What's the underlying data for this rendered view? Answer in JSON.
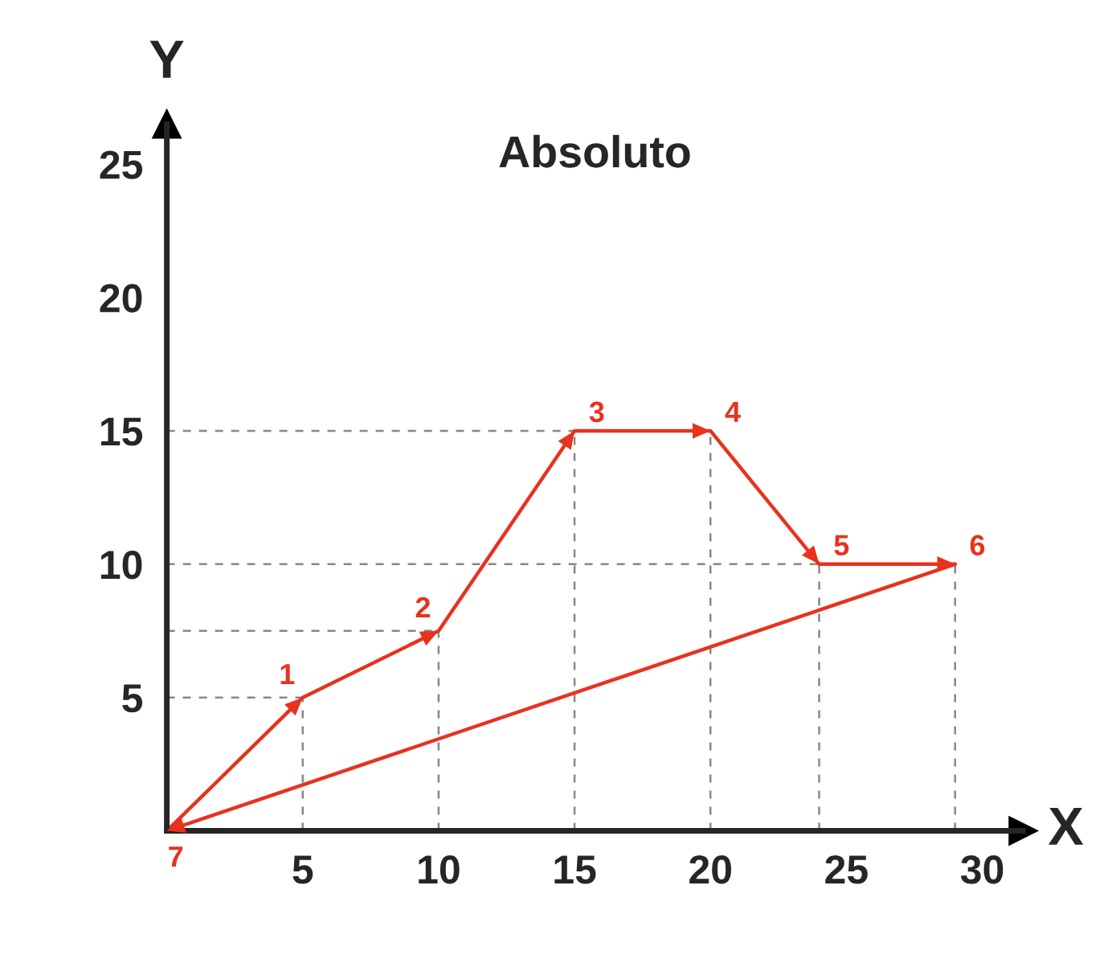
{
  "chart_data": {
    "type": "line",
    "title": "Absoluto",
    "xlabel": "X",
    "ylabel": "Y",
    "x": [
      0,
      5,
      10,
      15,
      20,
      24,
      29
    ],
    "series": [
      {
        "color": "#e8321e",
        "values": [
          0,
          5,
          7.5,
          15,
          15,
          10,
          10
        ]
      },
      {
        "color": "#e8321e",
        "x": [
          29,
          0
        ],
        "values": [
          10,
          0
        ]
      }
    ],
    "annotations": [
      {
        "text": "1",
        "x": 5,
        "y": 5
      },
      {
        "text": "2",
        "x": 10,
        "y": 7.5
      },
      {
        "text": "3",
        "x": 15,
        "y": 15
      },
      {
        "text": "4",
        "x": 20,
        "y": 15
      },
      {
        "text": "5",
        "x": 24,
        "y": 10
      },
      {
        "text": "6",
        "x": 29,
        "y": 10
      },
      {
        "text": "7",
        "x": 0,
        "y": 0
      }
    ],
    "ref_lines": [
      {
        "axis": "y",
        "value": 5,
        "color": "#888888",
        "line_style": "dashed"
      },
      {
        "axis": "y",
        "value": 7.5,
        "color": "#888888",
        "line_style": "dashed"
      },
      {
        "axis": "y",
        "value": 10,
        "color": "#888888",
        "line_style": "dashed"
      },
      {
        "axis": "y",
        "value": 15,
        "color": "#888888",
        "line_style": "dashed"
      },
      {
        "axis": "x",
        "value": 5,
        "color": "#888888",
        "line_style": "dashed"
      },
      {
        "axis": "x",
        "value": 10,
        "color": "#888888",
        "line_style": "dashed"
      },
      {
        "axis": "x",
        "value": 15,
        "color": "#888888",
        "line_style": "dashed"
      },
      {
        "axis": "x",
        "value": 20,
        "color": "#888888",
        "line_style": "dashed"
      },
      {
        "axis": "x",
        "value": 24,
        "color": "#888888",
        "line_style": "dashed"
      },
      {
        "axis": "x",
        "value": 29,
        "color": "#888888",
        "line_style": "dashed"
      }
    ],
    "xlim": [
      0,
      31.5
    ],
    "ylim": [
      0,
      26.5
    ],
    "xticks": [
      5,
      10,
      15,
      20,
      25,
      30
    ],
    "yticks": [
      5,
      10,
      15,
      20,
      25
    ],
    "grid": false,
    "legend": false,
    "marker": "none",
    "line_style": "solid"
  }
}
